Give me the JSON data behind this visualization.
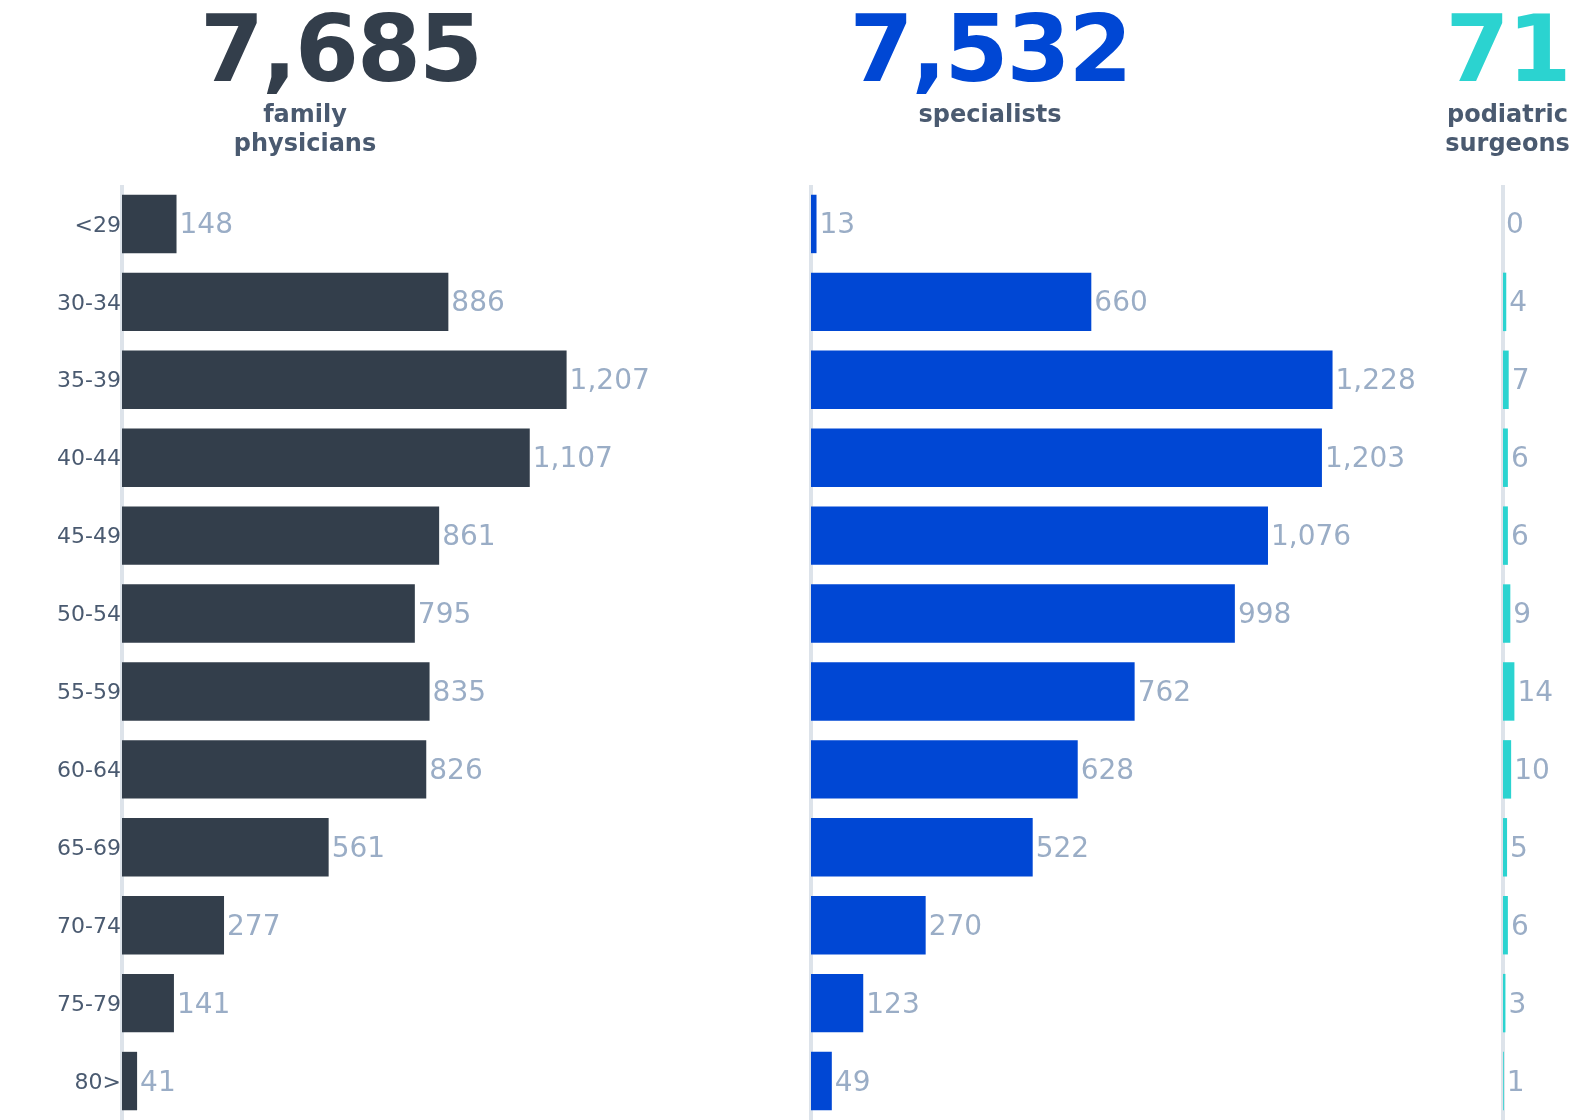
{
  "chart_data": [
    {
      "type": "bar",
      "orientation": "horizontal",
      "title": "7,685",
      "subtitle": "family physicians",
      "categories": [
        "<29",
        "30-34",
        "35-39",
        "40-44",
        "45-49",
        "50-54",
        "55-59",
        "60-64",
        "65-69",
        "70-74",
        "75-79",
        "80>"
      ],
      "values": [
        148,
        886,
        1207,
        1107,
        861,
        795,
        835,
        826,
        561,
        277,
        141,
        41
      ],
      "color": "#333e4b",
      "value_labels": [
        "148",
        "886",
        "1,207",
        "1,107",
        "861",
        "795",
        "835",
        "826",
        "561",
        "277",
        "141",
        "41"
      ],
      "tick_labels": "y",
      "grid": false
    },
    {
      "type": "bar",
      "orientation": "horizontal",
      "title": "7,532",
      "subtitle": "specialists",
      "categories": [
        null,
        null,
        null,
        null,
        null,
        null,
        null,
        null,
        null,
        null,
        null,
        null
      ],
      "values": [
        13,
        660,
        1228,
        1203,
        1076,
        998,
        762,
        628,
        522,
        270,
        123,
        49
      ],
      "color": "#0047d4",
      "value_labels": [
        "13",
        "660",
        "1,228",
        "1,203",
        "1,076",
        "998",
        "762",
        "628",
        "522",
        "270",
        "123",
        "49"
      ],
      "tick_labels": false,
      "grid": false
    },
    {
      "type": "bar",
      "orientation": "horizontal",
      "title": "71",
      "subtitle": "podiatric surgeons",
      "categories": [
        null,
        null,
        null,
        null,
        null,
        null,
        null,
        null,
        null,
        null,
        null,
        null
      ],
      "values": [
        0,
        4,
        7,
        6,
        6,
        9,
        14,
        10,
        5,
        6,
        3,
        1
      ],
      "color": "#2bd3d0",
      "data_labels": true,
      "tick_labels": false,
      "grid": false
    }
  ]
}
